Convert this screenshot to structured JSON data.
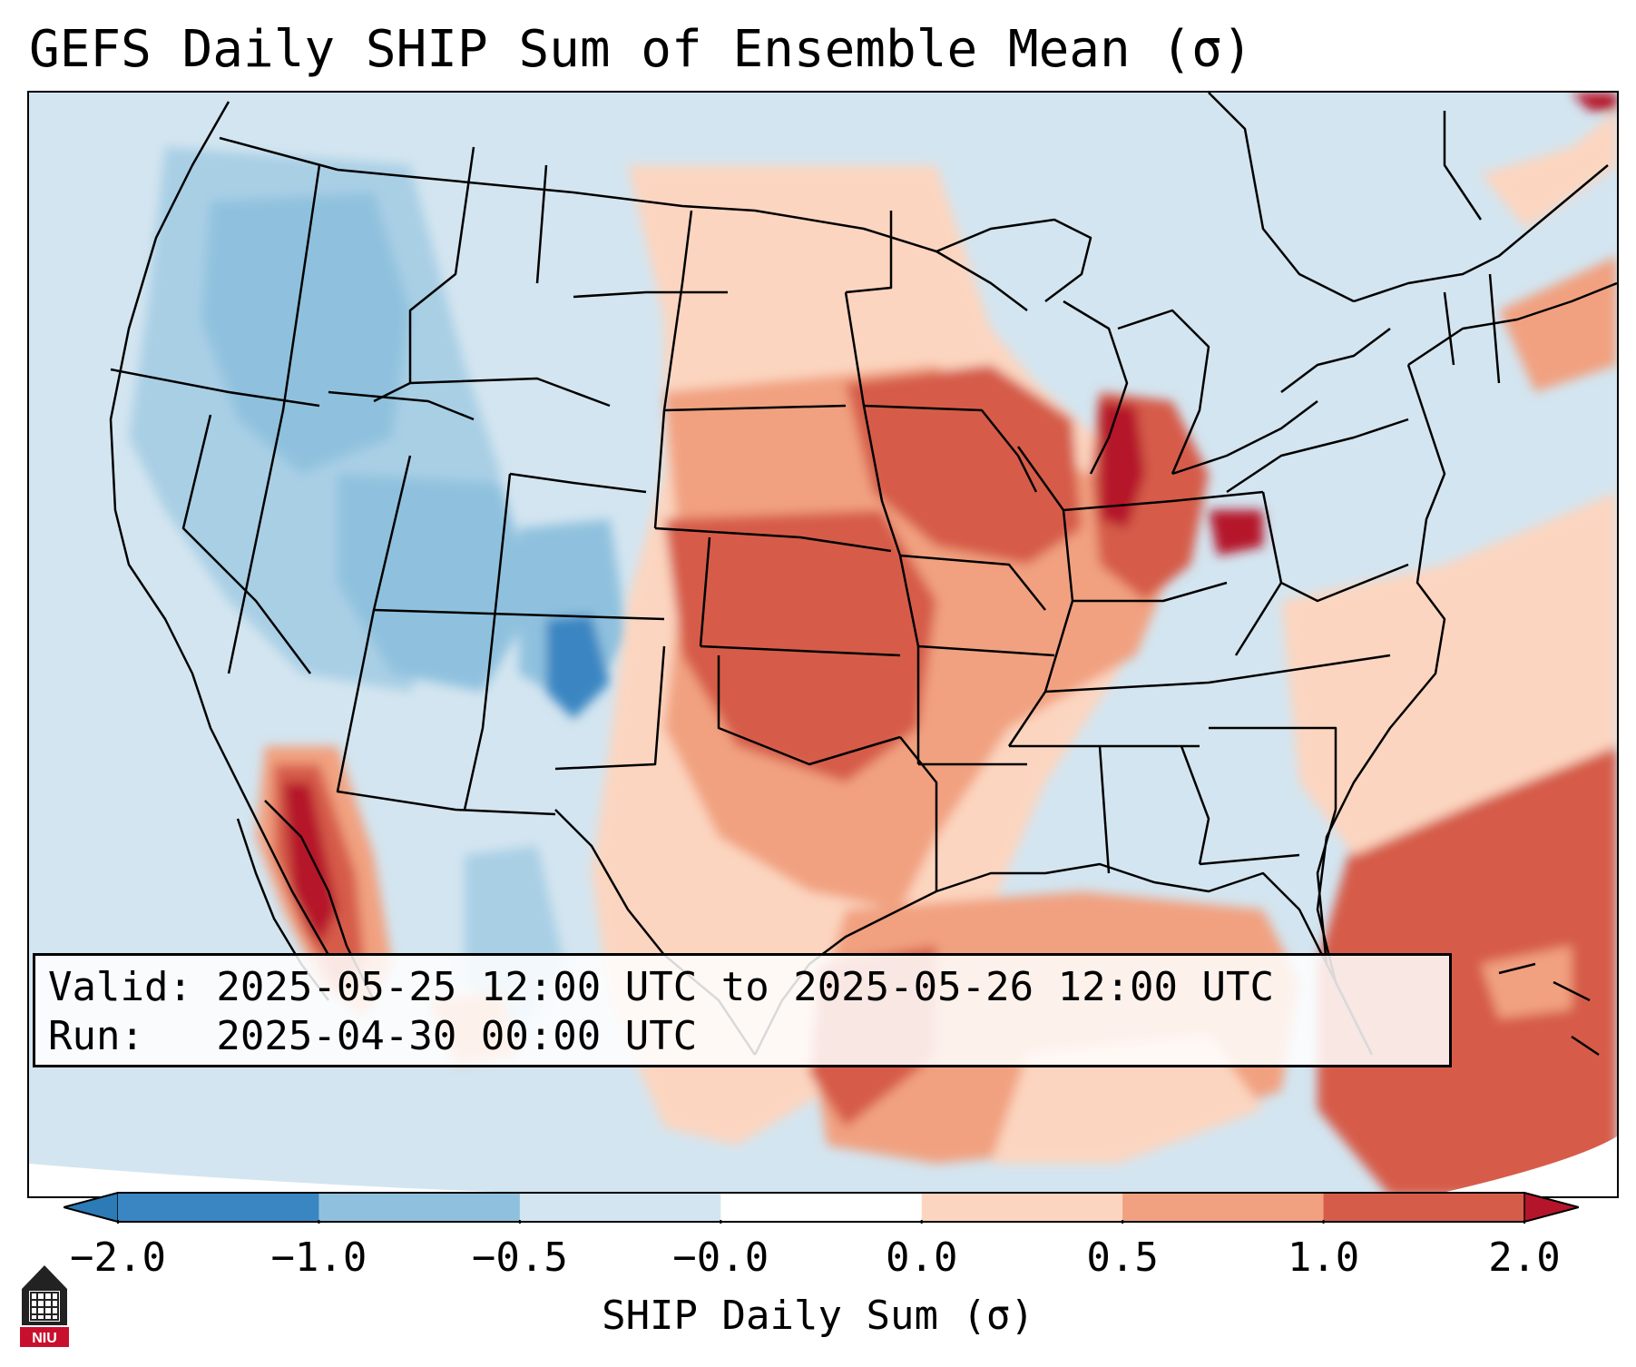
{
  "title": "GEFS Daily SHIP Sum of Ensemble Mean (σ)",
  "info": {
    "valid_line": "Valid: 2025-05-25 12:00 UTC to 2025-05-26 12:00 UTC",
    "run_line": "Run:   2025-04-30 00:00 UTC"
  },
  "colorbar": {
    "label": "SHIP Daily Sum (σ)",
    "ticks": [
      "−2.0",
      "−1.0",
      "−0.5",
      "−0.0",
      "0.0",
      "0.5",
      "1.0",
      "2.0"
    ],
    "colors": [
      "#2c7bb6",
      "#3a86c2",
      "#8fc1de",
      "#d3e5f0",
      "#ffffff",
      "#fcd5c0",
      "#f1a180",
      "#d65c4a",
      "#b5152b"
    ]
  },
  "logo": {
    "text": "NIU",
    "icon": "university-seal-icon"
  }
}
